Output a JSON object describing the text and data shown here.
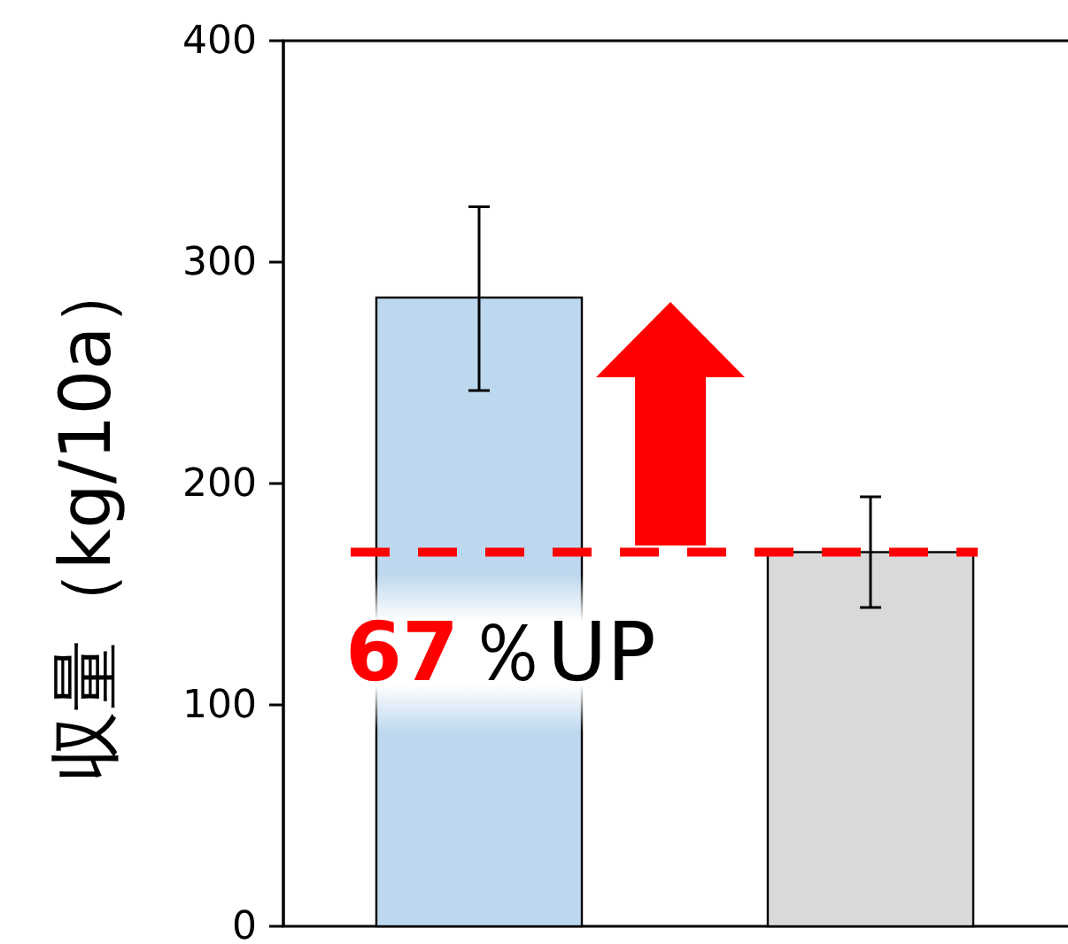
{
  "chart_data": {
    "type": "bar",
    "ylabel": "収量（kg/10a）",
    "categories": [
      null,
      null
    ],
    "values": [
      284,
      169
    ],
    "colors": [
      "#bdd7ee",
      "#d9d9d9"
    ],
    "errors": [
      [
        242,
        325
      ],
      [
        144,
        194
      ]
    ],
    "ylim": [
      0,
      400
    ],
    "yticks": [
      0,
      100,
      200,
      300,
      400
    ],
    "grid": false,
    "tick_labels": "y",
    "ref_lines": [
      {
        "axis": "y",
        "value": 169,
        "color": "#ff0000",
        "line_style": "dashed"
      }
    ],
    "annotations": [
      "67",
      "％UP"
    ]
  }
}
